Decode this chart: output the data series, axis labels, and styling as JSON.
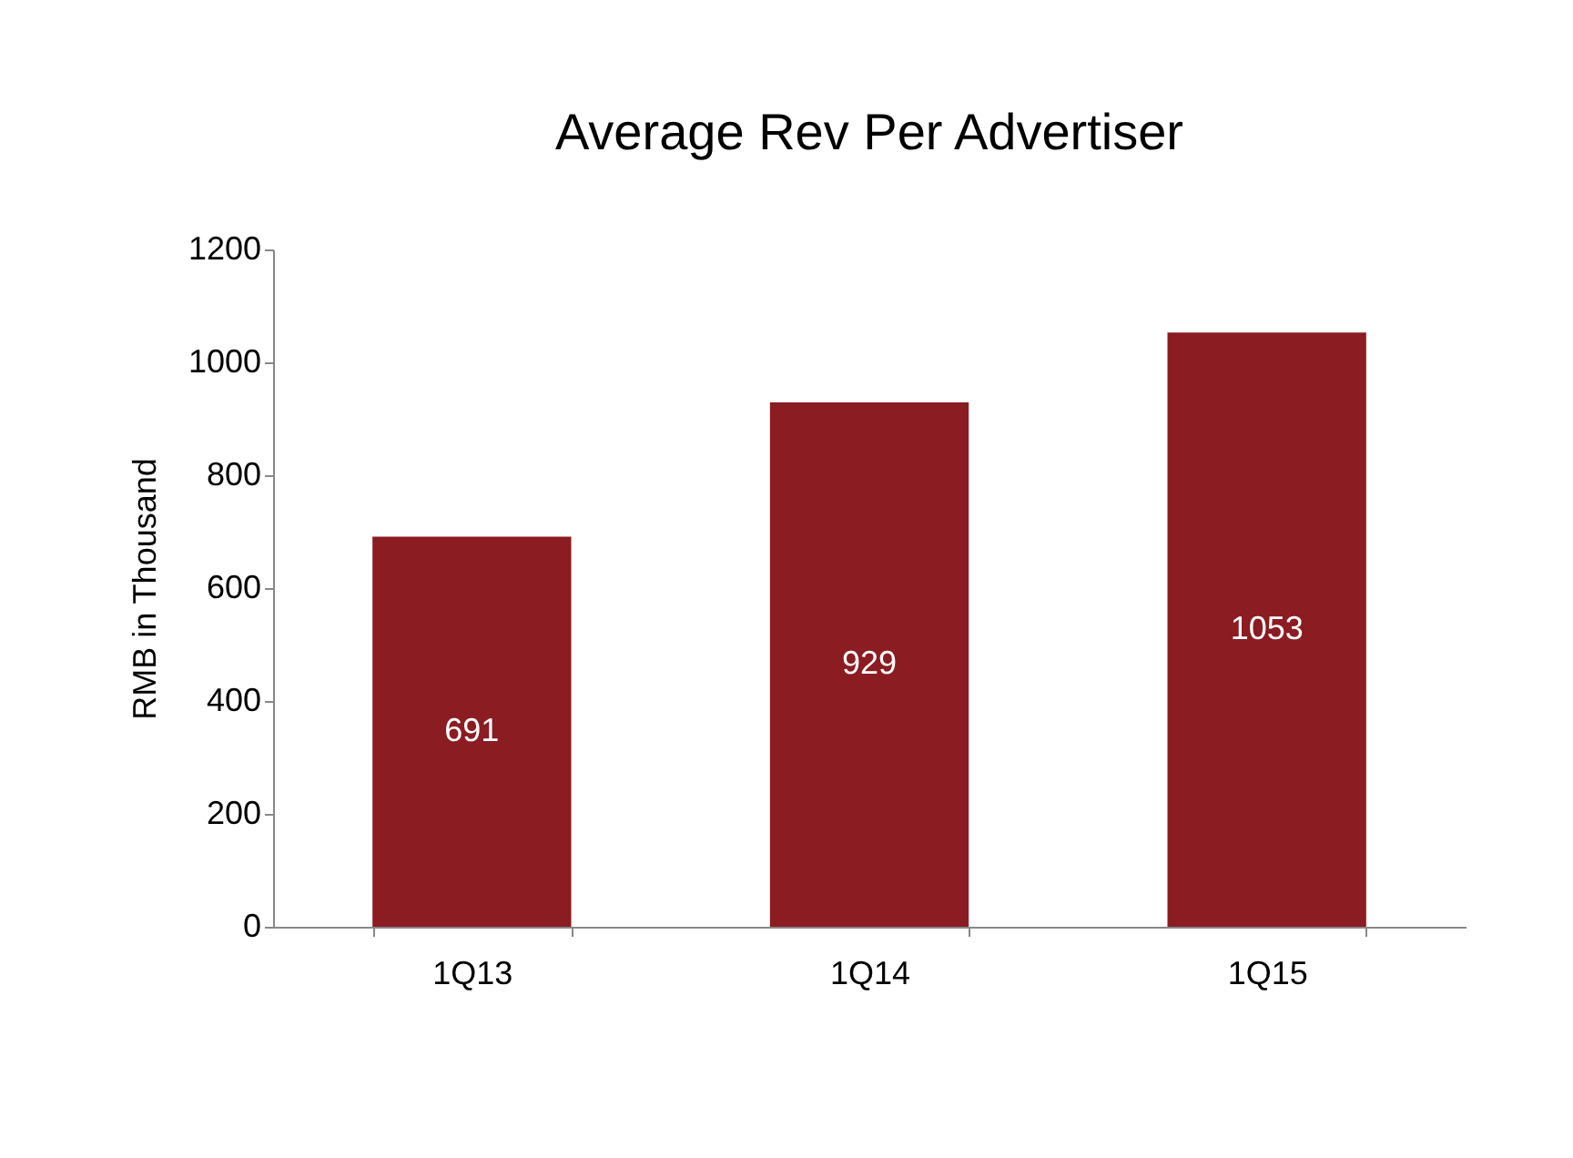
{
  "chart_data": {
    "type": "bar",
    "title": "Average Rev Per Advertiser",
    "ylabel": "RMB in Thousand",
    "categories": [
      "1Q13",
      "1Q14",
      "1Q15"
    ],
    "values": [
      691,
      929,
      1053
    ],
    "color": "#8b1c22",
    "ylim": [
      0,
      1200
    ],
    "yticks": [
      0,
      200,
      400,
      600,
      800,
      1000,
      1200
    ],
    "data_labels": true,
    "grid": false
  }
}
